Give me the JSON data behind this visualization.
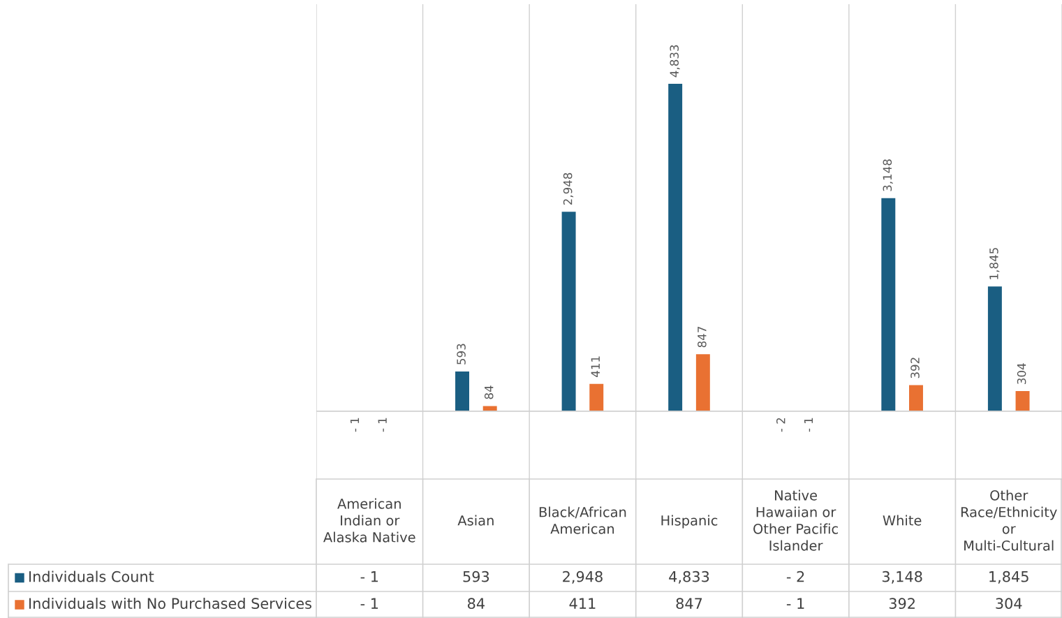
{
  "chart_data": {
    "type": "bar",
    "categories": [
      "American Indian or Alaska Native",
      "Asian",
      "Black/African American",
      "Hispanic",
      "Native Hawaiian or Other Pacific Islander",
      "White",
      "Other Race/Ethnicity or Multi-Cultural"
    ],
    "series": [
      {
        "name": "Individuals Count",
        "color": "#1a5e82",
        "values": [
          -1,
          593,
          2948,
          4833,
          -2,
          3148,
          1845
        ],
        "value_labels": [
          "- 1",
          "593",
          "2,948",
          "4,833",
          "- 2",
          "3,148",
          "1,845"
        ]
      },
      {
        "name": "Individuals with No Purchased Services",
        "color": "#e97132",
        "values": [
          -1,
          84,
          411,
          847,
          -1,
          392,
          304
        ],
        "value_labels": [
          "- 1",
          "84",
          "411",
          "847",
          "- 1",
          "392",
          "304"
        ]
      }
    ],
    "ylim": [
      -1000,
      6000
    ],
    "legend": "bottom left"
  }
}
